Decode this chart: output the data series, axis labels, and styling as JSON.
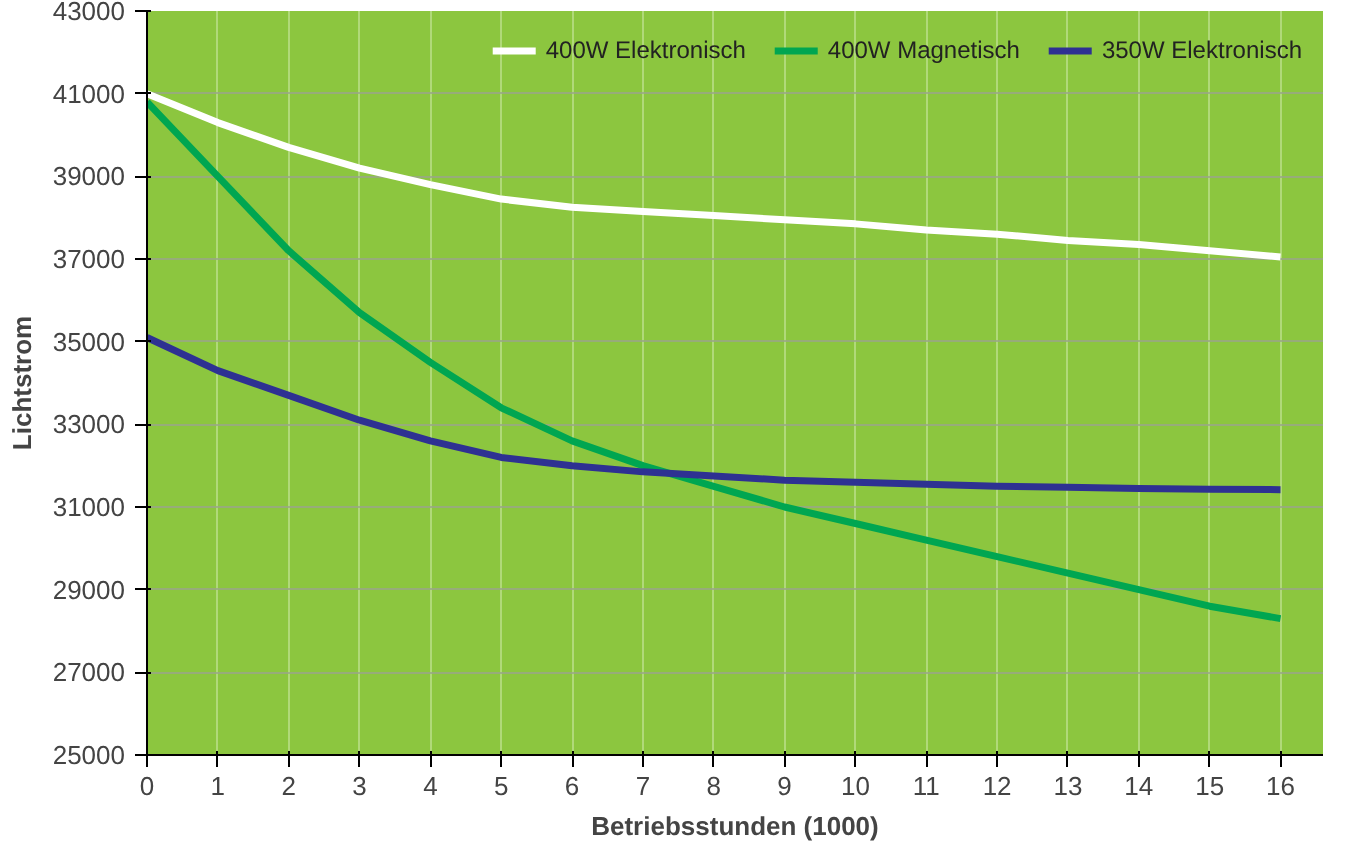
{
  "chart_data": {
    "type": "line",
    "xlabel": "Betriebsstunden (1000)",
    "ylabel": "Lichtstrom",
    "x": [
      0,
      1,
      2,
      3,
      4,
      5,
      6,
      7,
      8,
      9,
      10,
      11,
      12,
      13,
      14,
      15,
      16
    ],
    "series": [
      {
        "name": "400W Elektronisch",
        "color": "#ffffff",
        "values": [
          41000,
          40300,
          39700,
          39200,
          38800,
          38450,
          38250,
          38150,
          38050,
          37950,
          37850,
          37700,
          37600,
          37450,
          37350,
          37200,
          37050
        ]
      },
      {
        "name": "400W Magnetisch",
        "color": "#00a651",
        "values": [
          40800,
          39000,
          37200,
          35700,
          34500,
          33400,
          32600,
          32000,
          31500,
          31000,
          30600,
          30200,
          29800,
          29400,
          29000,
          28600,
          28300
        ]
      },
      {
        "name": "350W Elektronisch",
        "color": "#2e3192",
        "values": [
          35100,
          34300,
          33700,
          33100,
          32600,
          32200,
          32000,
          31850,
          31750,
          31650,
          31600,
          31550,
          31500,
          31480,
          31450,
          31430,
          31420
        ]
      }
    ],
    "xlim": [
      0,
      16.6
    ],
    "xticks": [
      0,
      1,
      2,
      3,
      4,
      5,
      6,
      7,
      8,
      9,
      10,
      11,
      12,
      13,
      14,
      15,
      16
    ],
    "ylim": [
      25000,
      43000
    ],
    "yticks": [
      25000,
      27000,
      29000,
      31000,
      33000,
      35000,
      37000,
      39000,
      41000,
      43000
    ],
    "grid": true,
    "legend": "top right",
    "marker": "none",
    "line_style": "solid"
  }
}
